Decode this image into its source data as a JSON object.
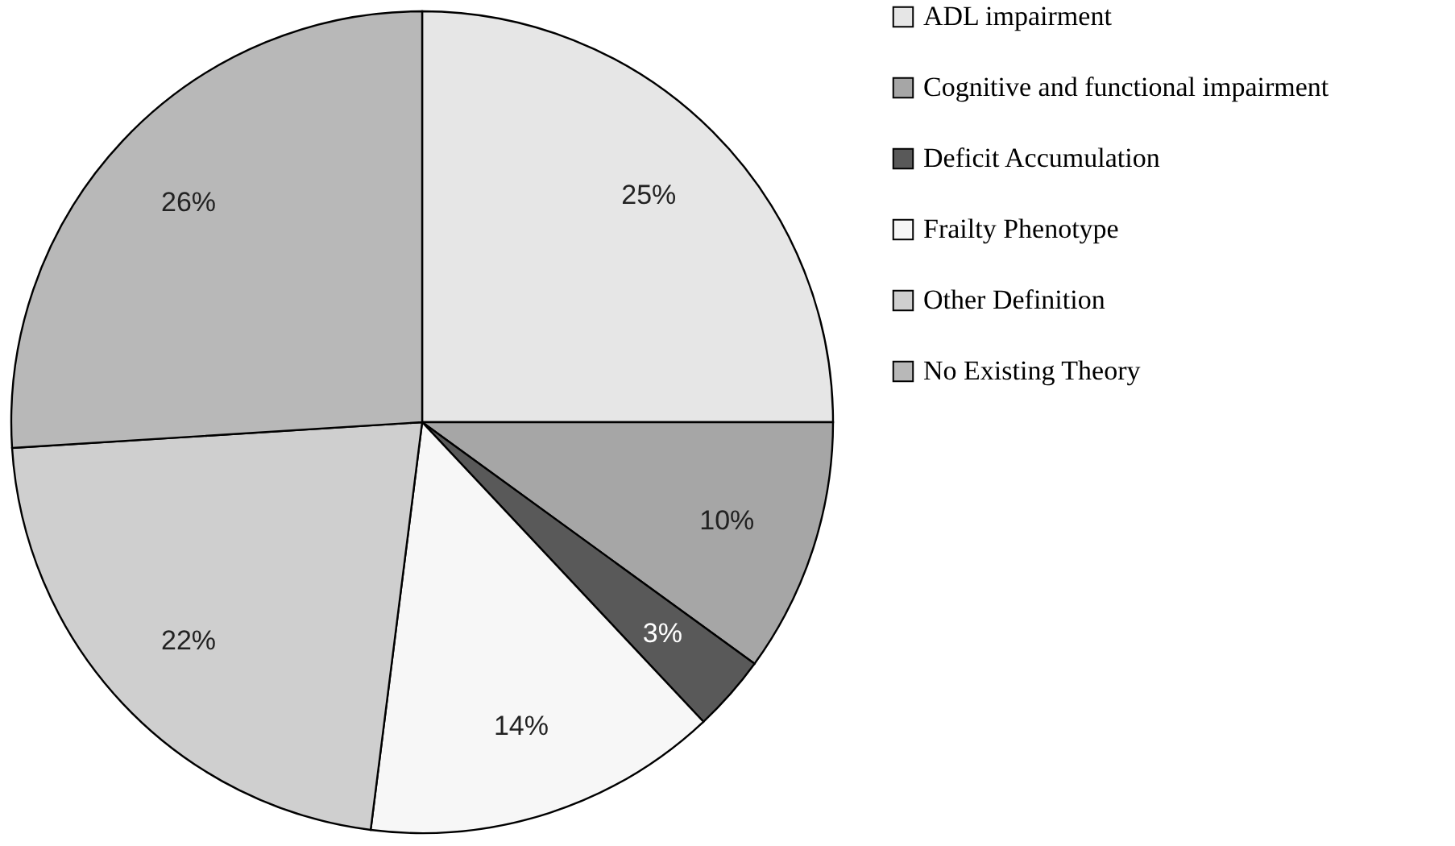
{
  "chart_data": {
    "type": "pie",
    "categories": [
      "ADL impairment",
      "Cognitive and functional impairment",
      "Deficit Accumulation",
      "Frailty Phenotype",
      "Other Definition",
      "No Existing Theory"
    ],
    "values": [
      25,
      10,
      3,
      14,
      22,
      26
    ],
    "value_labels": [
      "25%",
      "10%",
      "3%",
      "14%",
      "22%",
      "26%"
    ],
    "colors": [
      "#e6e6e6",
      "#a6a6a6",
      "#595959",
      "#f7f7f7",
      "#cfcfcf",
      "#b8b8b8"
    ],
    "legend": "right"
  }
}
